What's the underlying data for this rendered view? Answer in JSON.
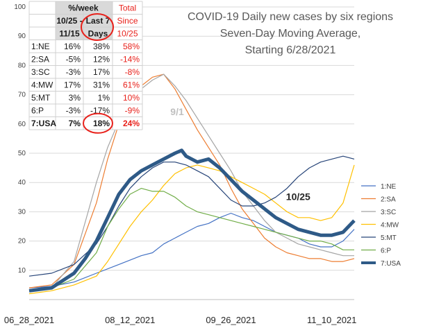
{
  "chart_data": {
    "type": "line",
    "title_lines": [
      "COVID-19 Daily new cases by six regions",
      "Seven-Day Moving Average,",
      "Starting 6/28/2021"
    ],
    "title_colors": [
      "#595959",
      "#595959",
      "#e8201a"
    ],
    "y_ticks": [
      "10",
      "20",
      "30",
      "40",
      "50",
      "60",
      "70",
      "80",
      "90",
      "100"
    ],
    "ylim": [
      0,
      100
    ],
    "x_tick_labels": [
      "06_28_2021",
      "08_12_2021",
      "09_26_2021",
      "11_10_2021"
    ],
    "x_tick_days": [
      0,
      45,
      90,
      135
    ],
    "xlim": [
      0,
      145
    ],
    "grid": true,
    "legend_position": "right",
    "series": [
      {
        "name": "1:NE",
        "color": "#4472c4",
        "width": 1.2,
        "points": [
          [
            0,
            4
          ],
          [
            10,
            4.5
          ],
          [
            20,
            6
          ],
          [
            30,
            9
          ],
          [
            40,
            12
          ],
          [
            50,
            15
          ],
          [
            55,
            16
          ],
          [
            60,
            19
          ],
          [
            65,
            21
          ],
          [
            70,
            23
          ],
          [
            75,
            25
          ],
          [
            80,
            26
          ],
          [
            85,
            28
          ],
          [
            90,
            29.5
          ],
          [
            95,
            28
          ],
          [
            100,
            27
          ],
          [
            105,
            25
          ],
          [
            110,
            23
          ],
          [
            115,
            22
          ],
          [
            120,
            21
          ],
          [
            125,
            19
          ],
          [
            130,
            18
          ],
          [
            135,
            18
          ],
          [
            140,
            20
          ],
          [
            145,
            24
          ]
        ]
      },
      {
        "name": "2:SA",
        "color": "#ed7d31",
        "width": 1.2,
        "points": [
          [
            0,
            4
          ],
          [
            10,
            5
          ],
          [
            20,
            12
          ],
          [
            30,
            33
          ],
          [
            35,
            48
          ],
          [
            40,
            60
          ],
          [
            45,
            68
          ],
          [
            50,
            73
          ],
          [
            55,
            76
          ],
          [
            60,
            77
          ],
          [
            65,
            72
          ],
          [
            70,
            65
          ],
          [
            75,
            58
          ],
          [
            80,
            52
          ],
          [
            85,
            46
          ],
          [
            90,
            38
          ],
          [
            95,
            31
          ],
          [
            100,
            26
          ],
          [
            105,
            21
          ],
          [
            110,
            18
          ],
          [
            115,
            16
          ],
          [
            120,
            15
          ],
          [
            125,
            14
          ],
          [
            130,
            14
          ],
          [
            135,
            13
          ],
          [
            140,
            13
          ],
          [
            145,
            14
          ]
        ]
      },
      {
        "name": "3:SC",
        "color": "#a5a5a5",
        "width": 1.2,
        "points": [
          [
            0,
            3
          ],
          [
            10,
            4
          ],
          [
            20,
            13
          ],
          [
            30,
            40
          ],
          [
            35,
            52
          ],
          [
            40,
            61
          ],
          [
            45,
            68
          ],
          [
            50,
            72
          ],
          [
            55,
            75
          ],
          [
            60,
            77
          ],
          [
            65,
            73
          ],
          [
            70,
            68
          ],
          [
            75,
            62
          ],
          [
            80,
            56
          ],
          [
            85,
            50
          ],
          [
            90,
            44
          ],
          [
            95,
            37
          ],
          [
            100,
            32
          ],
          [
            105,
            27
          ],
          [
            110,
            23
          ],
          [
            115,
            21
          ],
          [
            120,
            19
          ],
          [
            125,
            18
          ],
          [
            130,
            17
          ],
          [
            135,
            16
          ],
          [
            140,
            15
          ],
          [
            145,
            15
          ]
        ]
      },
      {
        "name": "4:MW",
        "color": "#ffc000",
        "width": 1.2,
        "points": [
          [
            0,
            2
          ],
          [
            10,
            3
          ],
          [
            20,
            5
          ],
          [
            30,
            8
          ],
          [
            35,
            13
          ],
          [
            40,
            19
          ],
          [
            45,
            25
          ],
          [
            50,
            30
          ],
          [
            55,
            34
          ],
          [
            60,
            39
          ],
          [
            65,
            43
          ],
          [
            70,
            45
          ],
          [
            75,
            46
          ],
          [
            80,
            45
          ],
          [
            85,
            44
          ],
          [
            90,
            42
          ],
          [
            95,
            40
          ],
          [
            100,
            38
          ],
          [
            105,
            36
          ],
          [
            110,
            33
          ],
          [
            115,
            30
          ],
          [
            120,
            28
          ],
          [
            125,
            28
          ],
          [
            130,
            27
          ],
          [
            135,
            28
          ],
          [
            140,
            33
          ],
          [
            145,
            46
          ]
        ]
      },
      {
        "name": "5:MT",
        "color": "#264478",
        "width": 1.2,
        "points": [
          [
            0,
            8
          ],
          [
            10,
            9
          ],
          [
            20,
            12
          ],
          [
            30,
            19
          ],
          [
            35,
            25
          ],
          [
            40,
            32
          ],
          [
            45,
            38
          ],
          [
            50,
            42
          ],
          [
            55,
            45
          ],
          [
            60,
            47
          ],
          [
            65,
            47
          ],
          [
            70,
            46
          ],
          [
            75,
            44
          ],
          [
            80,
            42
          ],
          [
            85,
            38
          ],
          [
            90,
            34
          ],
          [
            95,
            32
          ],
          [
            100,
            32
          ],
          [
            105,
            33
          ],
          [
            110,
            35
          ],
          [
            115,
            38
          ],
          [
            120,
            42
          ],
          [
            125,
            45
          ],
          [
            130,
            47
          ],
          [
            135,
            48
          ],
          [
            140,
            49
          ],
          [
            145,
            48
          ]
        ]
      },
      {
        "name": "6:P",
        "color": "#70ad47",
        "width": 1.2,
        "points": [
          [
            0,
            3
          ],
          [
            10,
            4
          ],
          [
            20,
            7
          ],
          [
            30,
            16
          ],
          [
            35,
            25
          ],
          [
            40,
            31
          ],
          [
            45,
            36
          ],
          [
            50,
            38
          ],
          [
            55,
            37
          ],
          [
            60,
            37
          ],
          [
            65,
            35
          ],
          [
            70,
            32
          ],
          [
            75,
            30
          ],
          [
            80,
            29
          ],
          [
            85,
            28
          ],
          [
            90,
            27
          ],
          [
            95,
            26
          ],
          [
            100,
            25
          ],
          [
            105,
            24
          ],
          [
            110,
            23
          ],
          [
            115,
            22
          ],
          [
            120,
            21
          ],
          [
            125,
            20
          ],
          [
            130,
            20
          ],
          [
            135,
            19
          ],
          [
            140,
            17
          ],
          [
            145,
            17
          ]
        ]
      },
      {
        "name": "7:USA",
        "color": "#2e5a87",
        "width": 5,
        "points": [
          [
            0,
            3
          ],
          [
            10,
            4
          ],
          [
            20,
            9
          ],
          [
            25,
            14
          ],
          [
            30,
            20
          ],
          [
            35,
            28
          ],
          [
            40,
            36
          ],
          [
            45,
            41
          ],
          [
            50,
            44
          ],
          [
            55,
            46
          ],
          [
            60,
            48
          ],
          [
            65,
            50
          ],
          [
            68,
            51
          ],
          [
            70,
            49
          ],
          [
            75,
            47
          ],
          [
            80,
            48
          ],
          [
            85,
            45
          ],
          [
            90,
            41
          ],
          [
            95,
            37
          ],
          [
            100,
            34
          ],
          [
            105,
            31
          ],
          [
            110,
            28
          ],
          [
            115,
            26
          ],
          [
            120,
            24
          ],
          [
            125,
            23
          ],
          [
            130,
            22
          ],
          [
            135,
            22
          ],
          [
            140,
            23
          ],
          [
            145,
            27
          ]
        ]
      }
    ],
    "annotations": [
      {
        "text": "9/1",
        "x": 66,
        "y": 63,
        "color": "#bfbfbf"
      },
      {
        "text": "10/25",
        "x": 120,
        "y": 34,
        "color": "#262626"
      }
    ],
    "table": {
      "header_row1": [
        "",
        "%/week",
        "",
        "Total"
      ],
      "header_row2": [
        "",
        "10/25 -",
        "Last 7",
        "Since"
      ],
      "header_row3": [
        "",
        "11/15",
        "Days",
        "10/25"
      ],
      "rows": [
        [
          "1:NE",
          "16%",
          "38%",
          "58%"
        ],
        [
          "2:SA",
          "-5%",
          "12%",
          "-14%"
        ],
        [
          "3:SC",
          "-3%",
          "17%",
          "-8%"
        ],
        [
          "4:MW",
          "17%",
          "31%",
          "61%"
        ],
        [
          "5:MT",
          "3%",
          "1%",
          "10%"
        ],
        [
          "6:P",
          "-3%",
          "-17%",
          "-9%"
        ],
        [
          "7:USA",
          "7%",
          "18%",
          "24%"
        ]
      ]
    }
  }
}
